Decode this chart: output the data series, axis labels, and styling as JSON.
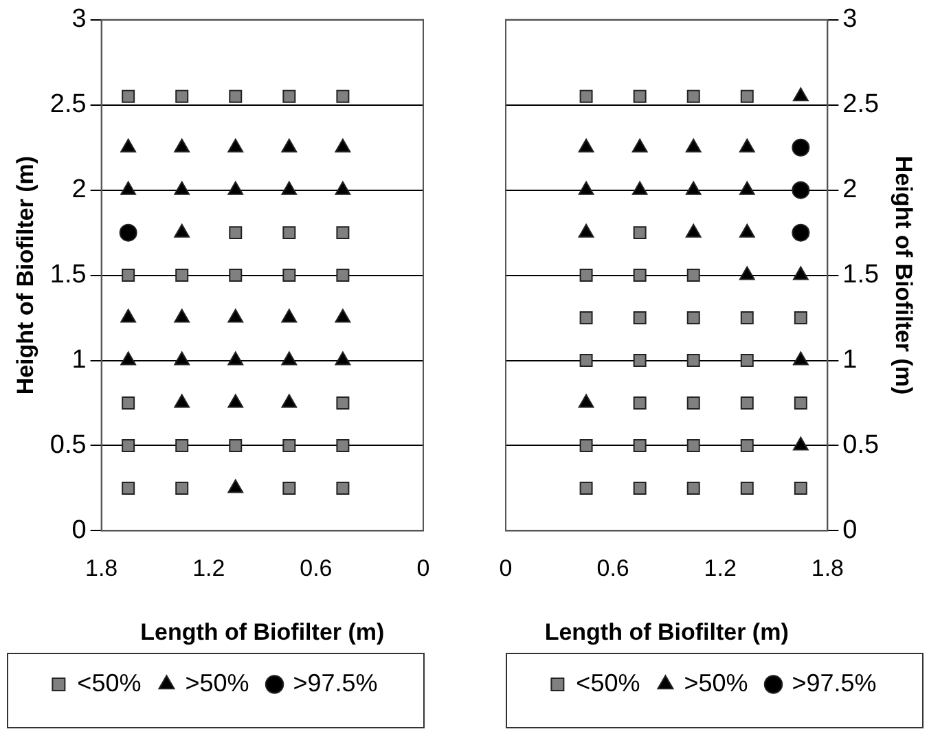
{
  "chart_data": [
    {
      "type": "scatter",
      "xlabel": "Length of Biofilter (m)",
      "ylabel": "Height of Biofilter (m)",
      "xlim": [
        1.8,
        0
      ],
      "xticks": [
        1.8,
        1.2,
        0.6,
        0
      ],
      "ylim": [
        0,
        3
      ],
      "yticks": [
        0,
        0.5,
        1,
        1.5,
        2,
        2.5,
        3
      ],
      "grid": "y",
      "legend": "bottom",
      "series": [
        {
          "name": "<50%",
          "marker": "square",
          "color": "#808080",
          "x": [
            1.65,
            1.35,
            1.05,
            0.75,
            0.45,
            1.05,
            0.75,
            0.45,
            1.65,
            1.35,
            1.05,
            0.75,
            0.45,
            1.65,
            0.45,
            1.65,
            1.35,
            1.05,
            0.75,
            0.45,
            1.65,
            1.35,
            0.75,
            0.45
          ],
          "values": [
            2.55,
            2.55,
            2.55,
            2.55,
            2.55,
            1.75,
            1.75,
            1.75,
            1.5,
            1.5,
            1.5,
            1.5,
            1.5,
            0.75,
            0.75,
            0.5,
            0.5,
            0.5,
            0.5,
            0.5,
            0.25,
            0.25,
            0.25,
            0.25
          ]
        },
        {
          "name": ">50%",
          "marker": "triangle",
          "color": "#000000",
          "x": [
            1.65,
            1.35,
            1.05,
            0.75,
            0.45,
            1.65,
            1.35,
            1.05,
            0.75,
            0.45,
            1.35,
            1.65,
            1.35,
            1.05,
            0.75,
            0.45,
            1.65,
            1.35,
            1.05,
            0.75,
            0.45,
            1.35,
            1.05,
            0.75,
            1.05
          ],
          "values": [
            2.25,
            2.25,
            2.25,
            2.25,
            2.25,
            2,
            2,
            2,
            2,
            2,
            1.75,
            1.25,
            1.25,
            1.25,
            1.25,
            1.25,
            1,
            1,
            1,
            1,
            1,
            0.75,
            0.75,
            0.75,
            0.25
          ]
        },
        {
          "name": ">97.5%",
          "marker": "circle",
          "color": "#000000",
          "x": [
            1.65
          ],
          "values": [
            1.75
          ]
        }
      ]
    },
    {
      "type": "scatter",
      "xlabel": "Length of Biofilter (m)",
      "ylabel": "Height of Biofilter (m)",
      "xlim": [
        0,
        1.8
      ],
      "xticks": [
        0,
        0.6,
        1.2,
        1.8
      ],
      "ylim": [
        0,
        3
      ],
      "yticks": [
        0,
        0.5,
        1,
        1.5,
        2,
        2.5,
        3
      ],
      "grid": "y",
      "legend": "bottom",
      "series": [
        {
          "name": "<50%",
          "marker": "square",
          "color": "#808080",
          "x": [
            0.45,
            0.75,
            1.05,
            1.35,
            0.75,
            0.45,
            0.75,
            1.05,
            0.45,
            0.75,
            1.05,
            1.35,
            1.65,
            0.45,
            0.75,
            1.05,
            1.35,
            0.75,
            1.05,
            1.35,
            1.65,
            0.45,
            0.75,
            1.05,
            1.35,
            0.45,
            0.75,
            1.05,
            1.35,
            1.65
          ],
          "values": [
            2.55,
            2.55,
            2.55,
            2.55,
            1.75,
            1.5,
            1.5,
            1.5,
            1.25,
            1.25,
            1.25,
            1.25,
            1.25,
            1,
            1,
            1,
            1,
            0.75,
            0.75,
            0.75,
            0.75,
            0.5,
            0.5,
            0.5,
            0.5,
            0.25,
            0.25,
            0.25,
            0.25,
            0.25
          ]
        },
        {
          "name": ">50%",
          "marker": "triangle",
          "color": "#000000",
          "x": [
            1.65,
            0.45,
            0.75,
            1.05,
            1.35,
            0.45,
            0.75,
            1.05,
            1.35,
            0.45,
            1.05,
            1.35,
            1.35,
            1.65,
            1.65,
            0.45,
            1.65
          ],
          "values": [
            2.55,
            2.25,
            2.25,
            2.25,
            2.25,
            2,
            2,
            2,
            2,
            1.75,
            1.75,
            1.75,
            1.5,
            1.5,
            1,
            0.75,
            0.5
          ]
        },
        {
          "name": ">97.5%",
          "marker": "circle",
          "color": "#000000",
          "x": [
            1.65,
            1.65,
            1.65
          ],
          "values": [
            2.25,
            2,
            1.75
          ]
        }
      ]
    }
  ]
}
